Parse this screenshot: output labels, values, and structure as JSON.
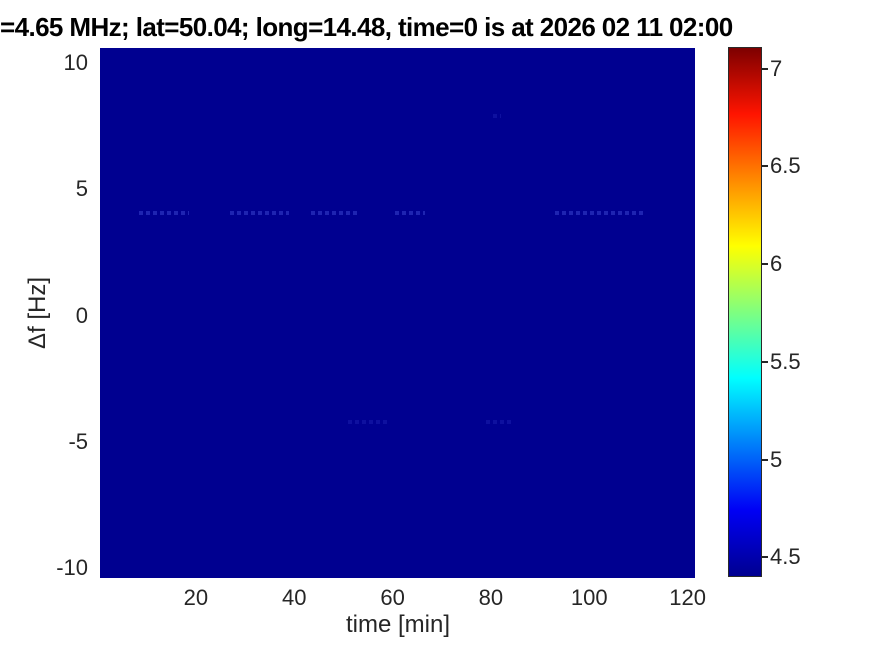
{
  "title": "=4.65 MHz;  lat=50.04; long=14.48, time=0 is at 2026 02 11 02:00",
  "chart_data": {
    "type": "heatmap",
    "title": "=4.65 MHz;  lat=50.04; long=14.48, time=0 is at 2026 02 11 02:00",
    "xlabel": "time [min]",
    "ylabel": "Δf [Hz]",
    "xlim": [
      0.5,
      121.5
    ],
    "ylim": [
      -10.4,
      10.6
    ],
    "x_ticks": [
      20,
      40,
      60,
      80,
      100,
      120
    ],
    "y_ticks": [
      10,
      5,
      0,
      -5,
      -10
    ],
    "grid": false,
    "background_value": 4.4,
    "colorbar": {
      "position": "right",
      "ticks": [
        7,
        6.5,
        6,
        5.5,
        5,
        4.5
      ],
      "clim": [
        4.4,
        7.11
      ],
      "colormap": "jet",
      "colormap_stops": [
        {
          "pos": 0,
          "color": "#000090"
        },
        {
          "pos": 0.125,
          "color": "#0000f5"
        },
        {
          "pos": 0.375,
          "color": "#00ffff"
        },
        {
          "pos": 0.625,
          "color": "#ffff00"
        },
        {
          "pos": 0.875,
          "color": "#ff1400"
        },
        {
          "pos": 1,
          "color": "#7d0000"
        }
      ]
    },
    "features": [
      {
        "label": "faint dotted enhancement at +4 Hz",
        "df_hz": 4.05,
        "value": 4.62,
        "time_ranges_min": [
          [
            8.5,
            18.5
          ],
          [
            27,
            39
          ],
          [
            43.5,
            53
          ],
          [
            60.5,
            66.5
          ],
          [
            93,
            111.5
          ]
        ]
      },
      {
        "label": "very faint smudges at -4.2 Hz",
        "df_hz": -4.2,
        "value": 4.5,
        "time_ranges_min": [
          [
            51,
            59
          ],
          [
            79,
            84
          ]
        ]
      },
      {
        "label": "tiny speck at +7.9 Hz",
        "df_hz": 7.9,
        "value": 4.5,
        "time_ranges_min": [
          [
            80.5,
            82
          ]
        ]
      }
    ]
  },
  "colors": {
    "figure_bg": "#ffffff",
    "plot_bg": "#000090",
    "tick_text": "#262626",
    "title_text": "#000000",
    "feature_dot": "#3a44cf"
  }
}
